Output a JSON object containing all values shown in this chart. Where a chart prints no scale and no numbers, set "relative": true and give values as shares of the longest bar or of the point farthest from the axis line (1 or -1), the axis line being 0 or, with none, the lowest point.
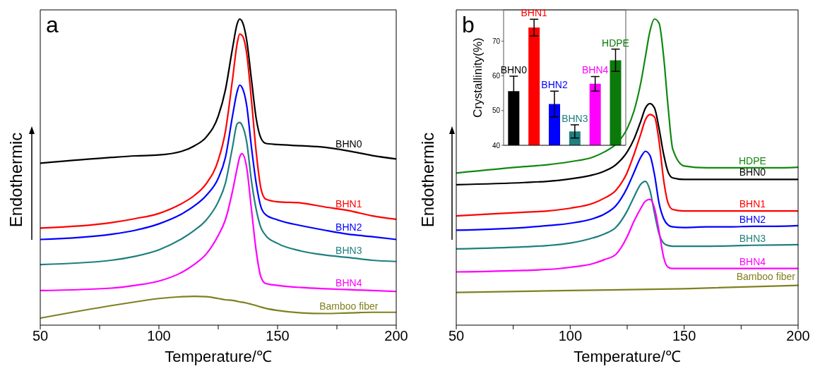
{
  "chart_data": [
    {
      "type": "line",
      "title": "a",
      "xlabel": "Temperature/℃",
      "ylabel": "Endothermic",
      "relative": true,
      "tick_labels": "x",
      "xlim": [
        50,
        200
      ],
      "xticks": [
        50,
        {
          "value": 75,
          "label": null
        },
        100,
        {
          "value": 125,
          "label": null
        },
        150,
        {
          "value": 175,
          "label": null
        },
        200
      ],
      "x": [
        50,
        80,
        90,
        100,
        110,
        115,
        120,
        125,
        128,
        131,
        133,
        134,
        135,
        137,
        139,
        141,
        143,
        145,
        150,
        160,
        170,
        180,
        190,
        200
      ],
      "series": [
        {
          "name": "BHN0",
          "color": "#000000",
          "values": [
            0.529,
            0.548,
            0.553,
            0.556,
            0.569,
            0.586,
            0.615,
            0.683,
            0.768,
            0.904,
            0.985,
            1.0,
            0.993,
            0.93,
            0.802,
            0.675,
            0.611,
            0.594,
            0.59,
            0.586,
            0.581,
            0.569,
            0.554,
            0.543
          ]
        },
        {
          "name": "BHN1",
          "color": "#ff0000",
          "values": [
            0.317,
            0.335,
            0.348,
            0.365,
            0.399,
            0.424,
            0.463,
            0.539,
            0.632,
            0.802,
            0.921,
            0.951,
            0.947,
            0.887,
            0.734,
            0.565,
            0.446,
            0.412,
            0.403,
            0.399,
            0.386,
            0.374,
            0.357,
            0.346
          ]
        },
        {
          "name": "BHN2",
          "color": "#0000ff",
          "values": [
            0.28,
            0.297,
            0.31,
            0.331,
            0.365,
            0.39,
            0.424,
            0.48,
            0.547,
            0.683,
            0.764,
            0.784,
            0.777,
            0.717,
            0.581,
            0.463,
            0.386,
            0.361,
            0.344,
            0.325,
            0.31,
            0.297,
            0.289,
            0.28
          ]
        },
        {
          "name": "BHN3",
          "color": "#1f7f7f",
          "values": [
            0.198,
            0.212,
            0.225,
            0.246,
            0.284,
            0.31,
            0.344,
            0.403,
            0.463,
            0.581,
            0.658,
            0.662,
            0.654,
            0.598,
            0.471,
            0.378,
            0.318,
            0.293,
            0.267,
            0.242,
            0.229,
            0.221,
            0.212,
            0.208
          ]
        },
        {
          "name": "BHN4",
          "color": "#ff00ff",
          "values": [
            0.113,
            0.121,
            0.13,
            0.144,
            0.174,
            0.199,
            0.233,
            0.293,
            0.344,
            0.437,
            0.514,
            0.548,
            0.56,
            0.514,
            0.378,
            0.242,
            0.157,
            0.136,
            0.13,
            0.123,
            0.119,
            0.116,
            0.113,
            0.11
          ]
        },
        {
          "name": "Bamboo fiber",
          "color": "#808020",
          "values": [
            0.023,
            0.064,
            0.076,
            0.087,
            0.093,
            0.094,
            0.093,
            0.087,
            0.083,
            0.081,
            0.078,
            0.076,
            0.075,
            0.072,
            0.068,
            0.064,
            0.059,
            0.055,
            0.048,
            0.04,
            0.038,
            0.04,
            0.042,
            0.042
          ]
        }
      ]
    },
    {
      "type": "line",
      "title": "b",
      "xlabel": "Temperature/℃",
      "ylabel": "Endothermic",
      "relative": true,
      "tick_labels": "x",
      "xlim": [
        50,
        200
      ],
      "xticks": [
        50,
        {
          "value": 75,
          "label": null
        },
        100,
        {
          "value": 125,
          "label": null
        },
        150,
        {
          "value": 175,
          "label": null
        },
        200
      ],
      "x": [
        50,
        80,
        90,
        100,
        110,
        115,
        120,
        125,
        128,
        131,
        133,
        135,
        137,
        139,
        141,
        143,
        145,
        150,
        160,
        170,
        180,
        190,
        200
      ],
      "series": [
        {
          "name": "HDPE",
          "color": "#118811",
          "values": [
            0.497,
            0.518,
            0.524,
            0.534,
            0.549,
            0.566,
            0.591,
            0.642,
            0.7,
            0.793,
            0.877,
            0.961,
            1.0,
            0.986,
            0.877,
            0.709,
            0.575,
            0.52,
            0.514,
            0.514,
            0.514,
            0.514,
            0.516
          ]
        },
        {
          "name": "BHN0",
          "color": "#000000",
          "values": [
            0.459,
            0.466,
            0.47,
            0.478,
            0.491,
            0.503,
            0.524,
            0.566,
            0.608,
            0.667,
            0.709,
            0.724,
            0.709,
            0.642,
            0.558,
            0.499,
            0.481,
            0.476,
            0.476,
            0.476,
            0.476,
            0.476,
            0.476
          ]
        },
        {
          "name": "BHN1",
          "color": "#ff0000",
          "values": [
            0.357,
            0.369,
            0.373,
            0.382,
            0.398,
            0.415,
            0.44,
            0.499,
            0.558,
            0.625,
            0.671,
            0.688,
            0.68,
            0.6,
            0.474,
            0.398,
            0.378,
            0.373,
            0.373,
            0.373,
            0.373,
            0.373,
            0.373
          ]
        },
        {
          "name": "BHN2",
          "color": "#0000ff",
          "values": [
            0.31,
            0.319,
            0.325,
            0.333,
            0.348,
            0.363,
            0.39,
            0.449,
            0.499,
            0.549,
            0.568,
            0.554,
            0.491,
            0.398,
            0.348,
            0.327,
            0.321,
            0.319,
            0.321,
            0.321,
            0.323,
            0.323,
            0.325
          ]
        },
        {
          "name": "BHN3",
          "color": "#1f7f7f",
          "values": [
            0.249,
            0.256,
            0.26,
            0.268,
            0.285,
            0.298,
            0.319,
            0.373,
            0.419,
            0.461,
            0.47,
            0.44,
            0.365,
            0.298,
            0.268,
            0.26,
            0.258,
            0.258,
            0.258,
            0.259,
            0.261,
            0.262,
            0.263
          ]
        },
        {
          "name": "BHN4",
          "color": "#ff00ff",
          "values": [
            0.174,
            0.179,
            0.182,
            0.189,
            0.201,
            0.214,
            0.231,
            0.289,
            0.34,
            0.382,
            0.405,
            0.411,
            0.382,
            0.306,
            0.222,
            0.189,
            0.185,
            0.185,
            0.185,
            0.185,
            0.185,
            0.185,
            0.185
          ]
        },
        {
          "name": "Bamboo fiber",
          "color": "#808020",
          "x": [
            50,
            100,
            150,
            200
          ],
          "values": [
            0.107,
            0.113,
            0.119,
            0.13
          ]
        }
      ]
    },
    {
      "type": "bar",
      "ylabel": "Crystallinity(%)",
      "tick_labels": "y",
      "ylim": [
        40,
        79
      ],
      "yticks": [
        40,
        50,
        60,
        70
      ],
      "categories": [
        "BHN0",
        "BHN1",
        "BHN2",
        "BHN3",
        "BHN4",
        "HDPE"
      ],
      "values": [
        55.6,
        73.9,
        51.9,
        44.0,
        57.7,
        64.5
      ],
      "errors": [
        4.3,
        2.4,
        3.7,
        1.9,
        2.1,
        3.2
      ],
      "colors": [
        "#000000",
        "#ff0000",
        "#0000ff",
        "#1f7f7f",
        "#ff00ff",
        "#0a7a0a"
      ]
    }
  ]
}
